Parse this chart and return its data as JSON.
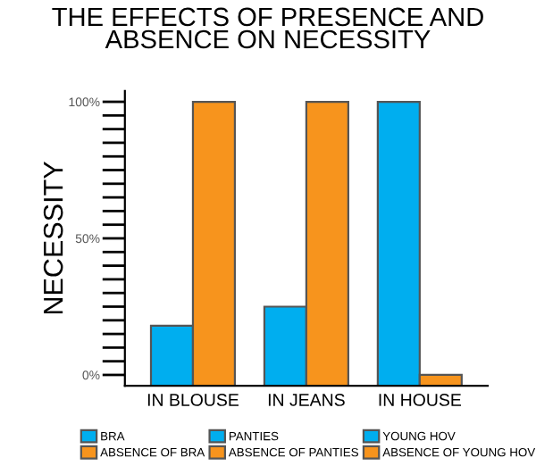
{
  "chart_data": {
    "type": "bar",
    "title": "THE EFFECTS OF PRESENCE AND ABSENCE ON NECESSITY",
    "ylabel": "NECESSITY",
    "categories": [
      "IN BLOUSE",
      "IN JEANS",
      "IN HOUSE"
    ],
    "series": [
      {
        "name": "BRA",
        "color": "#00aeef",
        "values": [
          22,
          null,
          null
        ],
        "base": [
          -4,
          null,
          null
        ]
      },
      {
        "name": "ABSENCE OF BRA",
        "color": "#f7941d",
        "values": [
          104,
          null,
          null
        ],
        "base": [
          -4,
          null,
          null
        ]
      },
      {
        "name": "PANTIES",
        "color": "#00aeef",
        "values": [
          null,
          29,
          null
        ],
        "base": [
          null,
          -4,
          null
        ]
      },
      {
        "name": "ABSENCE OF PANTIES",
        "color": "#f7941d",
        "values": [
          null,
          104,
          null
        ],
        "base": [
          null,
          -4,
          null
        ]
      },
      {
        "name": "YOUNG HOV",
        "color": "#00aeef",
        "values": [
          null,
          null,
          104
        ],
        "base": [
          null,
          null,
          -4
        ]
      },
      {
        "name": "ABSENCE OF YOUNG HOV",
        "color": "#f7941d",
        "values": [
          null,
          null,
          4
        ],
        "base": [
          null,
          null,
          -4
        ]
      }
    ],
    "ylim": [
      -4,
      104
    ],
    "yticks": [
      {
        "value": 0,
        "label": "0%"
      },
      {
        "value": 5,
        "label": null
      },
      {
        "value": 10,
        "label": null
      },
      {
        "value": 15,
        "label": null
      },
      {
        "value": 20,
        "label": null
      },
      {
        "value": 25,
        "label": null
      },
      {
        "value": 30,
        "label": null
      },
      {
        "value": 35,
        "label": null
      },
      {
        "value": 40,
        "label": null
      },
      {
        "value": 45,
        "label": null
      },
      {
        "value": 50,
        "label": "50%"
      },
      {
        "value": 55,
        "label": null
      },
      {
        "value": 60,
        "label": null
      },
      {
        "value": 65,
        "label": null
      },
      {
        "value": 70,
        "label": null
      },
      {
        "value": 75,
        "label": null
      },
      {
        "value": 80,
        "label": null
      },
      {
        "value": 85,
        "label": null
      },
      {
        "value": 90,
        "label": null
      },
      {
        "value": 95,
        "label": null
      },
      {
        "value": 100,
        "label": "100%"
      }
    ],
    "grid": false,
    "legend": "bottom"
  }
}
